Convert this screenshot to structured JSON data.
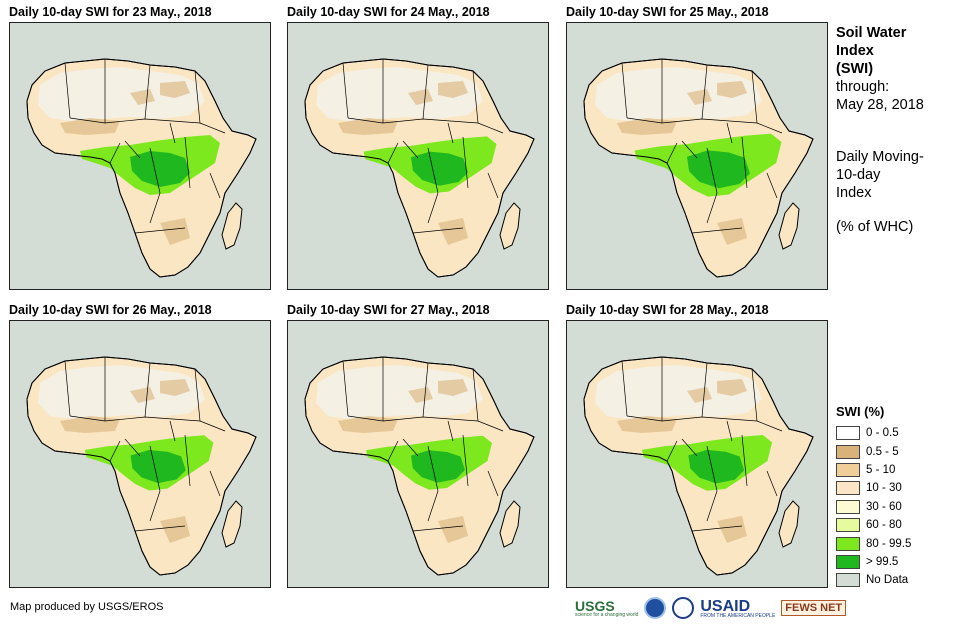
{
  "panels": [
    {
      "title": "Daily 10-day  SWI for 23 May., 2018"
    },
    {
      "title": "Daily 10-day  SWI for 24 May., 2018"
    },
    {
      "title": "Daily 10-day  SWI for 25 May., 2018"
    },
    {
      "title": "Daily 10-day  SWI for 26 May., 2018"
    },
    {
      "title": "Daily 10-day  SWI for 27 May., 2018"
    },
    {
      "title": "Daily 10-day  SWI for 28 May., 2018"
    }
  ],
  "sidebar": {
    "title_line1": "Soil Water",
    "title_line2": "Index",
    "title_line3": "(SWI)",
    "through_label": "through:",
    "through_date": "May 28, 2018",
    "desc_line1": "Daily Moving-",
    "desc_line2": "10-day",
    "desc_line3": "Index",
    "units": "(% of WHC)"
  },
  "legend": {
    "title": "SWI (%)",
    "items": [
      {
        "label": "0 - 0.5",
        "color": "#ffffff"
      },
      {
        "label": "0.5 - 5",
        "color": "#d9b27a"
      },
      {
        "label": "5 - 10",
        "color": "#efcf97"
      },
      {
        "label": "10 - 30",
        "color": "#fbe6c4"
      },
      {
        "label": "30 - 60",
        "color": "#fdfbd2"
      },
      {
        "label": "60 - 80",
        "color": "#e6fb9e"
      },
      {
        "label": "80 - 99.5",
        "color": "#7ee81e"
      },
      {
        "label": "> 99.5",
        "color": "#1fb81f"
      },
      {
        "label": "No Data",
        "color": "#d3ddd6"
      }
    ]
  },
  "footer": {
    "credit": "Map produced by USGS/EROS",
    "logos": {
      "usgs": "USGS",
      "usgs_tagline": "science for a changing world",
      "usaid": "USAID",
      "usaid_tagline": "FROM THE AMERICAN PEOPLE",
      "fews": "FEWS NET"
    }
  },
  "colors": {
    "ocean": "#d3ddd6",
    "land": "#fbe6c4",
    "sahara": "#f4f0e4",
    "wet": "#7ee81e",
    "verywet": "#1fb81f",
    "dry": "#d9b27a",
    "border": "#000000"
  }
}
